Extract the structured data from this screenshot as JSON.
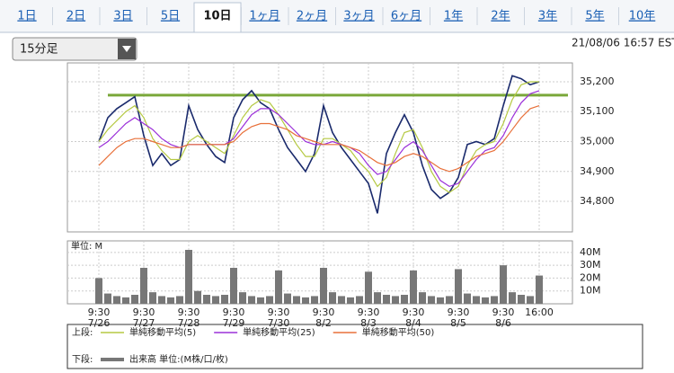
{
  "tabs": [
    "1日",
    "2日",
    "3日",
    "5日",
    "10日",
    "1ヶ月",
    "2ヶ月",
    "3ヶ月",
    "6ヶ月",
    "1年",
    "2年",
    "3年",
    "5年",
    "10年"
  ],
  "selected_tab": 4,
  "interval": "15分足",
  "timestamp": "21/08/06 16:57 EST",
  "chart_data": [
    {
      "type": "line",
      "legend_title": "上段:",
      "x": [
        0,
        1,
        2,
        3,
        4,
        5,
        6,
        7,
        8,
        9,
        10,
        11,
        12,
        13,
        14,
        15,
        16,
        17,
        18,
        19,
        20,
        21,
        22,
        23,
        24,
        25,
        26,
        27,
        28,
        29,
        30,
        31,
        32,
        33,
        34,
        35,
        36,
        37,
        38,
        39,
        40,
        41,
        42,
        43,
        44,
        45,
        46,
        47,
        48,
        49
      ],
      "xlim": [
        -3.5,
        52.7
      ],
      "xticks": [
        0,
        5,
        10,
        15,
        20,
        25,
        30,
        35,
        40,
        45,
        49
      ],
      "ylim": [
        34698,
        35263
      ],
      "yticks": [
        {
          "value": 34800,
          "label": "34,800"
        },
        {
          "value": 34900,
          "label": "34,900"
        },
        {
          "value": 35000,
          "label": "35,000"
        },
        {
          "value": 35100,
          "label": "35,100"
        },
        {
          "value": 35200,
          "label": "35,200"
        }
      ],
      "hline": 35155,
      "hline_color": "#7aa83a",
      "grid": true,
      "series": [
        {
          "color": "#1a2a6c",
          "values": [
            35000,
            35080,
            35110,
            35130,
            35150,
            35020,
            34920,
            34960,
            34920,
            34940,
            35120,
            35040,
            34990,
            34950,
            34930,
            35080,
            35140,
            35170,
            35130,
            35110,
            35040,
            34980,
            34940,
            34900,
            34960,
            35120,
            35030,
            34980,
            34940,
            34900,
            34860,
            34760,
            34960,
            35030,
            35090,
            35030,
            34920,
            34840,
            34810,
            34830,
            34880,
            34990,
            35000,
            34990,
            35010,
            35120,
            35220,
            35210,
            35190,
            35200
          ]
        },
        {
          "name": "単純移動平均(5)",
          "color": "#b5c942",
          "values": [
            35000,
            35040,
            35070,
            35100,
            35120,
            35080,
            35010,
            34970,
            34940,
            34940,
            35000,
            35020,
            35000,
            34980,
            34960,
            35020,
            35080,
            35120,
            35140,
            35130,
            35090,
            35040,
            34990,
            34950,
            34950,
            35010,
            35010,
            34990,
            34970,
            34930,
            34900,
            34850,
            34880,
            34960,
            35030,
            35040,
            34980,
            34900,
            34850,
            34830,
            34850,
            34920,
            34970,
            34990,
            35000,
            35060,
            35140,
            35190,
            35200,
            35200
          ]
        },
        {
          "name": "単純移動平均(25)",
          "color": "#9b30d9",
          "values": [
            34980,
            35000,
            35030,
            35060,
            35080,
            35060,
            35040,
            35010,
            34990,
            34980,
            34990,
            34990,
            34990,
            34990,
            34990,
            35010,
            35050,
            35090,
            35110,
            35110,
            35090,
            35060,
            35030,
            35000,
            34990,
            34990,
            35000,
            34990,
            34980,
            34960,
            34920,
            34890,
            34900,
            34940,
            34980,
            35000,
            34970,
            34920,
            34870,
            34850,
            34860,
            34900,
            34940,
            34970,
            34980,
            35020,
            35080,
            35130,
            35160,
            35170
          ]
        },
        {
          "name": "単純移動平均(50)",
          "color": "#e8703a",
          "values": [
            34920,
            34950,
            34980,
            35000,
            35010,
            35010,
            35000,
            34990,
            34980,
            34980,
            34990,
            34990,
            34990,
            34990,
            34990,
            35000,
            35030,
            35050,
            35060,
            35060,
            35050,
            35040,
            35020,
            35010,
            35000,
            34990,
            34990,
            34990,
            34980,
            34970,
            34950,
            34930,
            34920,
            34930,
            34950,
            34960,
            34950,
            34930,
            34910,
            34900,
            34910,
            34930,
            34950,
            34960,
            34970,
            35000,
            35040,
            35080,
            35110,
            35120
          ]
        }
      ]
    },
    {
      "type": "bar",
      "legend_title": "下段:",
      "ylabel": "単位: M",
      "x": [
        0,
        1,
        2,
        3,
        4,
        5,
        6,
        7,
        8,
        9,
        10,
        11,
        12,
        13,
        14,
        15,
        16,
        17,
        18,
        19,
        20,
        21,
        22,
        23,
        24,
        25,
        26,
        27,
        28,
        29,
        30,
        31,
        32,
        33,
        34,
        35,
        36,
        37,
        38,
        39,
        40,
        41,
        42,
        43,
        44,
        45,
        46,
        47,
        48,
        49
      ],
      "xlim": [
        -3.5,
        52.7
      ],
      "xticks": [
        {
          "value": 0,
          "label": "9:30",
          "date": "7/26"
        },
        {
          "value": 5,
          "label": "9:30",
          "date": "7/27"
        },
        {
          "value": 10,
          "label": "9:30",
          "date": "7/28"
        },
        {
          "value": 15,
          "label": "9:30",
          "date": "7/29"
        },
        {
          "value": 20,
          "label": "9:30",
          "date": "7/30"
        },
        {
          "value": 25,
          "label": "9:30",
          "date": "8/2"
        },
        {
          "value": 30,
          "label": "9:30",
          "date": "8/3"
        },
        {
          "value": 35,
          "label": "9:30",
          "date": "8/4"
        },
        {
          "value": 40,
          "label": "9:30",
          "date": "8/5"
        },
        {
          "value": 45,
          "label": "9:30",
          "date": "8/6"
        },
        {
          "value": 49,
          "label": "16:00"
        }
      ],
      "ylim": [
        0,
        49
      ],
      "yticks": [
        {
          "value": 10,
          "label": "10M"
        },
        {
          "value": 20,
          "label": "20M"
        },
        {
          "value": 30,
          "label": "30M"
        },
        {
          "value": 40,
          "label": "40M"
        }
      ],
      "grid": true,
      "series": [
        {
          "name": "出来高 単位:(M株/口/枚)",
          "color": "#777777",
          "values": [
            20,
            8,
            6,
            5,
            7,
            28,
            9,
            6,
            5,
            6,
            42,
            10,
            7,
            6,
            7,
            28,
            9,
            6,
            5,
            6,
            26,
            8,
            6,
            5,
            6,
            28,
            9,
            6,
            5,
            6,
            25,
            9,
            7,
            6,
            7,
            26,
            9,
            6,
            5,
            6,
            27,
            8,
            6,
            5,
            6,
            30,
            9,
            7,
            6,
            22
          ]
        }
      ]
    }
  ]
}
